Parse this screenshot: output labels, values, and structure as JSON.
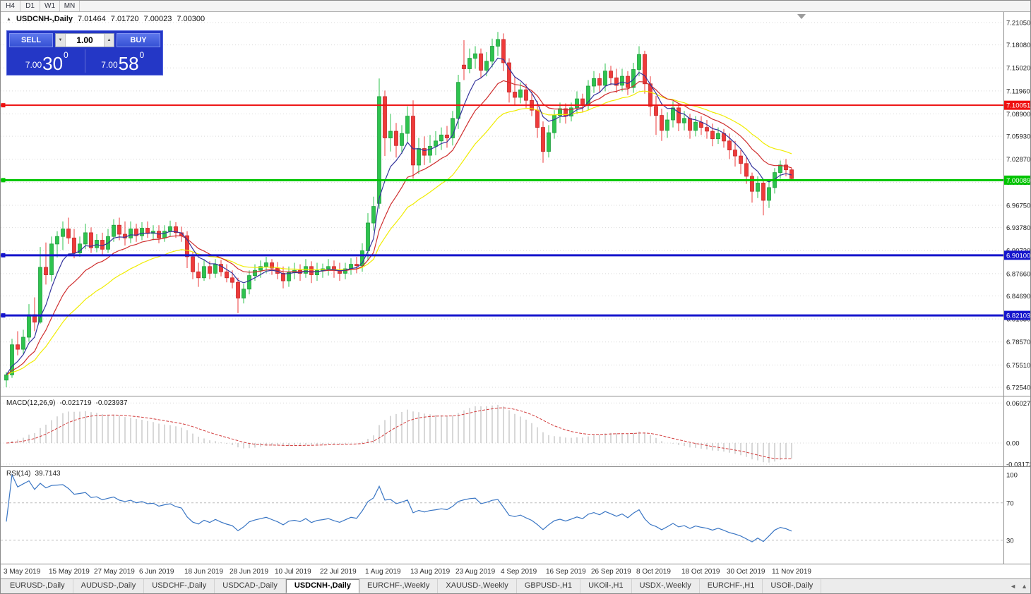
{
  "toolbar": {
    "periods": [
      {
        "label": "H4"
      },
      {
        "label": "D1"
      },
      {
        "label": "W1"
      },
      {
        "label": "MN"
      }
    ]
  },
  "icons": {
    "collapse": "▲",
    "spin_down": "▼",
    "spin_up": "▲",
    "scroll_left": "◄",
    "scroll_up": "▲"
  },
  "symbol_header": {
    "symbol": "USDCNH-,Daily",
    "open": "7.01464",
    "high": "7.01720",
    "low": "7.00023",
    "close": "7.00300"
  },
  "trade_panel": {
    "sell_label": "SELL",
    "buy_label": "BUY",
    "volume": "1.00",
    "sell_price": {
      "prefix": "7.00",
      "pips": "30",
      "pipette": "0"
    },
    "buy_price": {
      "prefix": "7.00",
      "pips": "58",
      "pipette": "0"
    }
  },
  "price_axis": {
    "labels": [
      "7.21050",
      "7.18080",
      "7.15020",
      "7.11960",
      "7.08900",
      "7.05930",
      "7.02870",
      "6.99810",
      "6.96750",
      "6.93780",
      "6.90720",
      "6.87660",
      "6.84690",
      "6.81630",
      "6.78570",
      "6.75510",
      "6.72540"
    ]
  },
  "hlines": [
    {
      "value": 7.10051,
      "label": "7.10051",
      "color": "#ee1111",
      "thickness": 2
    },
    {
      "value": 7.00089,
      "label": "7.00089",
      "color": "#00c400",
      "thickness": 3
    },
    {
      "value": 6.901,
      "label": "6.90100",
      "color": "#1414cc",
      "thickness": 3
    },
    {
      "value": 6.82103,
      "label": "6.82103",
      "color": "#1414cc",
      "thickness": 3
    }
  ],
  "macd": {
    "label": "MACD(12,26,9)",
    "value_main": "-0.021719",
    "value_signal": "-0.023937",
    "fast": 12,
    "slow": 26,
    "signal": 9,
    "axis": [
      "0.060273",
      "0.00",
      "-0.03172"
    ]
  },
  "rsi": {
    "label": "RSI(14)",
    "value": "39.7143",
    "period": 14,
    "axis": [
      "100",
      "70",
      "30"
    ],
    "levels": [
      70,
      30
    ]
  },
  "date_axis": {
    "labels": [
      {
        "index": 0,
        "text": "3 May 2019"
      },
      {
        "index": 8,
        "text": "15 May 2019"
      },
      {
        "index": 16,
        "text": "27 May 2019"
      },
      {
        "index": 24,
        "text": "6 Jun 2019"
      },
      {
        "index": 32,
        "text": "18 Jun 2019"
      },
      {
        "index": 40,
        "text": "28 Jun 2019"
      },
      {
        "index": 48,
        "text": "10 Jul 2019"
      },
      {
        "index": 56,
        "text": "22 Jul 2019"
      },
      {
        "index": 64,
        "text": "1 Aug 2019"
      },
      {
        "index": 72,
        "text": "13 Aug 2019"
      },
      {
        "index": 80,
        "text": "23 Aug 2019"
      },
      {
        "index": 88,
        "text": "4 Sep 2019"
      },
      {
        "index": 96,
        "text": "16 Sep 2019"
      },
      {
        "index": 104,
        "text": "26 Sep 2019"
      },
      {
        "index": 112,
        "text": "8 Oct 2019"
      },
      {
        "index": 120,
        "text": "18 Oct 2019"
      },
      {
        "index": 128,
        "text": "30 Oct 2019"
      },
      {
        "index": 136,
        "text": "11 Nov 2019"
      }
    ]
  },
  "tabs": {
    "items": [
      {
        "label": "EURUSD-,Daily",
        "active": false
      },
      {
        "label": "AUDUSD-,Daily",
        "active": false
      },
      {
        "label": "USDCHF-,Daily",
        "active": false
      },
      {
        "label": "USDCAD-,Daily",
        "active": false
      },
      {
        "label": "USDCNH-,Daily",
        "active": true
      },
      {
        "label": "EURCHF-,Weekly",
        "active": false
      },
      {
        "label": "XAUUSD-,Weekly",
        "active": false
      },
      {
        "label": "GBPUSD-,H1",
        "active": false
      },
      {
        "label": "UKOil-,H1",
        "active": false
      },
      {
        "label": "USDX-,Weekly",
        "active": false
      },
      {
        "label": "EURCHF-,H1",
        "active": false
      },
      {
        "label": "USOil-,Daily",
        "active": false
      }
    ]
  },
  "chart_data": {
    "type": "candlestick",
    "symbol": "USDCNH",
    "timeframe": "Daily",
    "ylim": [
      6.7151,
      7.2245
    ],
    "up_color": "#2ec34e",
    "down_color": "#ee3a3a",
    "moving_averages": [
      {
        "period": 24,
        "color": "#f0ec00"
      },
      {
        "period": 13,
        "color": "#cf2e2e"
      },
      {
        "period": 6,
        "color": "#34349c"
      }
    ],
    "ohlc": [
      [
        6.735,
        6.746,
        6.7254,
        6.742
      ],
      [
        6.742,
        6.79,
        6.738,
        6.782
      ],
      [
        6.782,
        6.8,
        6.768,
        6.776
      ],
      [
        6.776,
        6.802,
        6.77,
        6.792
      ],
      [
        6.792,
        6.836,
        6.786,
        6.822
      ],
      [
        6.822,
        6.845,
        6.8,
        6.812
      ],
      [
        6.812,
        6.912,
        6.81,
        6.885
      ],
      [
        6.885,
        6.918,
        6.862,
        6.875
      ],
      [
        6.875,
        6.926,
        6.866,
        6.916
      ],
      [
        6.916,
        6.933,
        6.898,
        6.926
      ],
      [
        6.926,
        6.946,
        6.908,
        6.936
      ],
      [
        6.936,
        6.951,
        6.916,
        6.924
      ],
      [
        6.924,
        6.936,
        6.897,
        6.904
      ],
      [
        6.904,
        6.926,
        6.899,
        6.916
      ],
      [
        6.916,
        6.943,
        6.909,
        6.931
      ],
      [
        6.931,
        6.938,
        6.904,
        6.911
      ],
      [
        6.911,
        6.929,
        6.905,
        6.921
      ],
      [
        6.921,
        6.931,
        6.901,
        6.909
      ],
      [
        6.909,
        6.936,
        6.904,
        6.926
      ],
      [
        6.926,
        6.949,
        6.919,
        6.941
      ],
      [
        6.941,
        6.951,
        6.921,
        6.929
      ],
      [
        6.929,
        6.946,
        6.914,
        6.924
      ],
      [
        6.924,
        6.946,
        6.917,
        6.936
      ],
      [
        6.936,
        6.943,
        6.919,
        6.927
      ],
      [
        6.927,
        6.945,
        6.921,
        6.937
      ],
      [
        6.937,
        6.946,
        6.924,
        6.93
      ],
      [
        6.93,
        6.941,
        6.921,
        6.933
      ],
      [
        6.933,
        6.941,
        6.917,
        6.924
      ],
      [
        6.924,
        6.941,
        6.919,
        6.933
      ],
      [
        6.933,
        6.947,
        6.926,
        6.939
      ],
      [
        6.939,
        6.945,
        6.924,
        6.931
      ],
      [
        6.931,
        6.939,
        6.919,
        6.927
      ],
      [
        6.927,
        6.933,
        6.884,
        6.899
      ],
      [
        6.899,
        6.906,
        6.869,
        6.879
      ],
      [
        6.879,
        6.891,
        6.859,
        6.871
      ],
      [
        6.871,
        6.896,
        6.867,
        6.886
      ],
      [
        6.886,
        6.893,
        6.869,
        6.877
      ],
      [
        6.877,
        6.896,
        6.871,
        6.889
      ],
      [
        6.889,
        6.895,
        6.873,
        6.879
      ],
      [
        6.879,
        6.889,
        6.865,
        6.871
      ],
      [
        6.871,
        6.881,
        6.857,
        6.865
      ],
      [
        6.865,
        6.871,
        6.824,
        6.844
      ],
      [
        6.844,
        6.863,
        6.837,
        6.856
      ],
      [
        6.856,
        6.881,
        6.849,
        6.874
      ],
      [
        6.874,
        6.889,
        6.867,
        6.881
      ],
      [
        6.881,
        6.894,
        6.871,
        6.886
      ],
      [
        6.886,
        6.899,
        6.877,
        6.891
      ],
      [
        6.891,
        6.896,
        6.875,
        6.884
      ],
      [
        6.884,
        6.892,
        6.869,
        6.877
      ],
      [
        6.877,
        6.886,
        6.857,
        6.867
      ],
      [
        6.867,
        6.886,
        6.859,
        6.878
      ],
      [
        6.878,
        6.891,
        6.869,
        6.881
      ],
      [
        6.881,
        6.889,
        6.867,
        6.877
      ],
      [
        6.877,
        6.896,
        6.871,
        6.886
      ],
      [
        6.886,
        6.893,
        6.864,
        6.875
      ],
      [
        6.875,
        6.891,
        6.867,
        6.881
      ],
      [
        6.881,
        6.89,
        6.871,
        6.883
      ],
      [
        6.883,
        6.896,
        6.874,
        6.886
      ],
      [
        6.886,
        6.894,
        6.871,
        6.881
      ],
      [
        6.881,
        6.891,
        6.867,
        6.877
      ],
      [
        6.877,
        6.891,
        6.869,
        6.883
      ],
      [
        6.883,
        6.897,
        6.875,
        6.889
      ],
      [
        6.889,
        6.899,
        6.877,
        6.887
      ],
      [
        6.887,
        6.917,
        6.879,
        6.907
      ],
      [
        6.907,
        6.957,
        6.894,
        6.944
      ],
      [
        6.944,
        6.979,
        6.934,
        6.966
      ],
      [
        6.97,
        7.136,
        6.963,
        7.112
      ],
      [
        7.112,
        7.12,
        7.033,
        7.057
      ],
      [
        7.057,
        7.089,
        7.039,
        7.066
      ],
      [
        7.066,
        7.077,
        7.031,
        7.047
      ],
      [
        7.047,
        7.074,
        7.036,
        7.063
      ],
      [
        7.063,
        7.099,
        7.051,
        7.086
      ],
      [
        7.086,
        7.107,
        7.003,
        7.021
      ],
      [
        7.021,
        7.057,
        7.009,
        7.043
      ],
      [
        7.043,
        7.059,
        7.021,
        7.034
      ],
      [
        7.034,
        7.061,
        7.024,
        7.046
      ],
      [
        7.046,
        7.066,
        7.034,
        7.053
      ],
      [
        7.053,
        7.071,
        7.041,
        7.061
      ],
      [
        7.061,
        7.073,
        7.044,
        7.057
      ],
      [
        7.057,
        7.093,
        7.047,
        7.083
      ],
      [
        7.083,
        7.141,
        7.069,
        7.131
      ],
      [
        7.154,
        7.187,
        7.134,
        7.149
      ],
      [
        7.149,
        7.176,
        7.143,
        7.163
      ],
      [
        7.163,
        7.179,
        7.149,
        7.169
      ],
      [
        7.169,
        7.176,
        7.136,
        7.147
      ],
      [
        7.147,
        7.171,
        7.139,
        7.159
      ],
      [
        7.159,
        7.189,
        7.151,
        7.179
      ],
      [
        7.179,
        7.198,
        7.166,
        7.188
      ],
      [
        7.188,
        7.196,
        7.146,
        7.157
      ],
      [
        7.157,
        7.163,
        7.104,
        7.118
      ],
      [
        7.118,
        7.139,
        7.101,
        7.111
      ],
      [
        7.111,
        7.131,
        7.103,
        7.121
      ],
      [
        7.121,
        7.129,
        7.097,
        7.107
      ],
      [
        7.107,
        7.119,
        7.086,
        7.094
      ],
      [
        7.094,
        7.106,
        7.057,
        7.071
      ],
      [
        7.071,
        7.079,
        7.024,
        7.039
      ],
      [
        7.039,
        7.074,
        7.031,
        7.064
      ],
      [
        7.064,
        7.094,
        7.056,
        7.087
      ],
      [
        7.087,
        7.104,
        7.077,
        7.096
      ],
      [
        7.096,
        7.103,
        7.076,
        7.086
      ],
      [
        7.086,
        7.104,
        7.079,
        7.097
      ],
      [
        7.097,
        7.119,
        7.089,
        7.109
      ],
      [
        7.109,
        7.116,
        7.091,
        7.101
      ],
      [
        7.101,
        7.134,
        7.094,
        7.126
      ],
      [
        7.126,
        7.146,
        7.117,
        7.136
      ],
      [
        7.136,
        7.143,
        7.117,
        7.127
      ],
      [
        7.127,
        7.156,
        7.119,
        7.146
      ],
      [
        7.146,
        7.153,
        7.127,
        7.137
      ],
      [
        7.137,
        7.149,
        7.117,
        7.127
      ],
      [
        7.127,
        7.149,
        7.119,
        7.139
      ],
      [
        7.139,
        7.146,
        7.114,
        7.124
      ],
      [
        7.124,
        7.157,
        7.117,
        7.148
      ],
      [
        7.148,
        7.179,
        7.139,
        7.168
      ],
      [
        7.168,
        7.173,
        7.116,
        7.129
      ],
      [
        7.129,
        7.139,
        7.086,
        7.099
      ],
      [
        7.099,
        7.113,
        7.061,
        7.087
      ],
      [
        7.087,
        7.096,
        7.053,
        7.067
      ],
      [
        7.067,
        7.091,
        7.057,
        7.081
      ],
      [
        7.081,
        7.106,
        7.071,
        7.097
      ],
      [
        7.097,
        7.103,
        7.066,
        7.077
      ],
      [
        7.077,
        7.093,
        7.067,
        7.083
      ],
      [
        7.083,
        7.089,
        7.056,
        7.067
      ],
      [
        7.067,
        7.086,
        7.059,
        7.078
      ],
      [
        7.078,
        7.086,
        7.061,
        7.071
      ],
      [
        7.071,
        7.081,
        7.056,
        7.066
      ],
      [
        7.066,
        7.076,
        7.046,
        7.056
      ],
      [
        7.056,
        7.071,
        7.049,
        7.063
      ],
      [
        7.063,
        7.069,
        7.044,
        7.053
      ],
      [
        7.053,
        7.063,
        7.029,
        7.041
      ],
      [
        7.041,
        7.053,
        7.019,
        7.033
      ],
      [
        7.033,
        7.041,
        7.009,
        7.023
      ],
      [
        7.023,
        7.031,
        6.996,
        7.006
      ],
      [
        7.006,
        7.011,
        6.971,
        6.986
      ],
      [
        6.986,
        7.006,
        6.977,
        6.997
      ],
      [
        6.997,
        7.001,
        6.954,
        6.974
      ],
      [
        6.974,
        6.999,
        6.964,
        6.991
      ],
      [
        6.991,
        7.017,
        6.983,
        7.011
      ],
      [
        7.011,
        7.027,
        7.003,
        7.021
      ],
      [
        7.021,
        7.029,
        7.006,
        7.0146
      ],
      [
        7.01464,
        7.0172,
        7.00023,
        7.003
      ]
    ]
  }
}
